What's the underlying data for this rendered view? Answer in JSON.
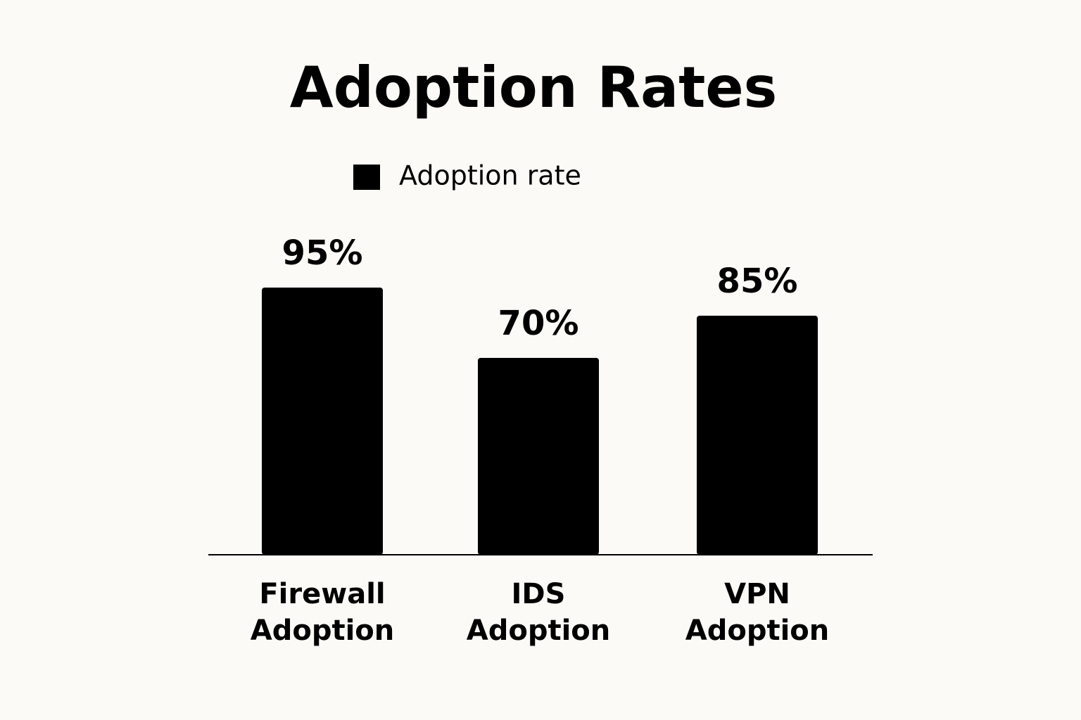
{
  "chart_data": {
    "type": "bar",
    "title": "Adoption Rates",
    "categories": [
      "Firewall Adoption",
      "IDS Adoption",
      "VPN Adoption"
    ],
    "series": [
      {
        "name": "Adoption rate",
        "color": "#000000",
        "values": [
          95,
          70,
          85
        ],
        "value_labels": [
          "95%",
          "70%",
          "85%"
        ]
      }
    ],
    "legend": "top"
  }
}
